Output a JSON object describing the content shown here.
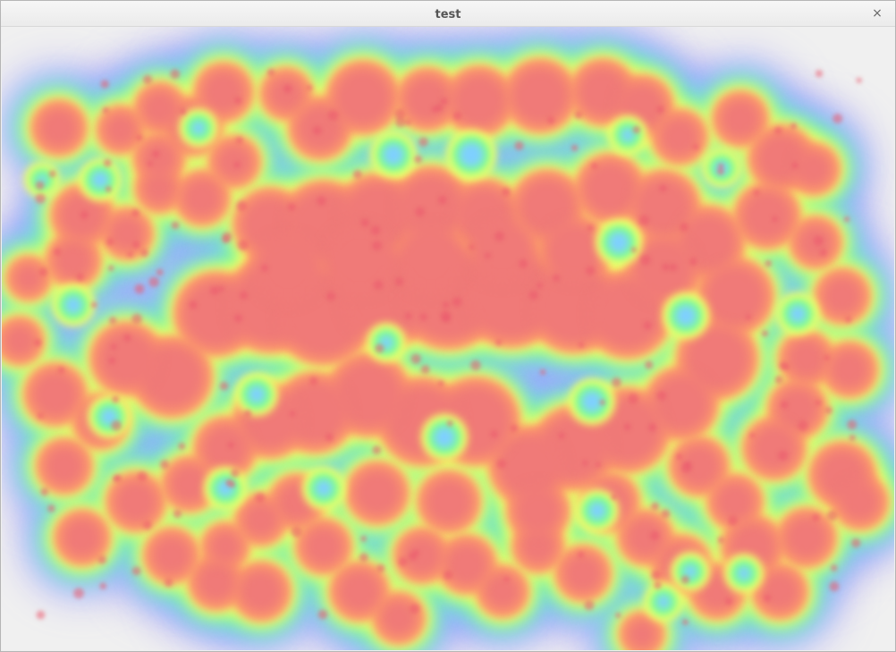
{
  "window": {
    "title": "test",
    "close_glyph": "×"
  },
  "heatmap": {
    "colors": [
      "#8a7cff",
      "#7fd0ff",
      "#7dff90",
      "#ffff66",
      "#ff9a6a",
      "#f07a78"
    ],
    "blobs": [
      [
        64,
        142,
        30
      ],
      [
        133,
        144,
        26
      ],
      [
        214,
        140,
        32
      ],
      [
        177,
        120,
        28
      ],
      [
        248,
        102,
        32
      ],
      [
        318,
        104,
        28
      ],
      [
        356,
        142,
        34
      ],
      [
        404,
        108,
        40
      ],
      [
        476,
        110,
        34
      ],
      [
        534,
        112,
        38
      ],
      [
        602,
        106,
        40
      ],
      [
        672,
        102,
        36
      ],
      [
        716,
        118,
        34
      ],
      [
        758,
        152,
        30
      ],
      [
        826,
        132,
        30
      ],
      [
        872,
        176,
        36
      ],
      [
        908,
        188,
        28
      ],
      [
        856,
        240,
        36
      ],
      [
        910,
        270,
        28
      ],
      [
        940,
        330,
        30
      ],
      [
        900,
        400,
        30
      ],
      [
        948,
        412,
        30
      ],
      [
        890,
        456,
        32
      ],
      [
        864,
        500,
        34
      ],
      [
        940,
        530,
        36
      ],
      [
        960,
        560,
        30
      ],
      [
        900,
        600,
        32
      ],
      [
        840,
        610,
        34
      ],
      [
        800,
        660,
        30
      ],
      [
        870,
        660,
        30
      ],
      [
        760,
        630,
        32
      ],
      [
        720,
        600,
        30
      ],
      [
        716,
        708,
        24
      ],
      [
        650,
        640,
        30
      ],
      [
        600,
        610,
        28
      ],
      [
        560,
        660,
        28
      ],
      [
        520,
        630,
        32
      ],
      [
        470,
        620,
        30
      ],
      [
        444,
        690,
        28
      ],
      [
        400,
        660,
        32
      ],
      [
        360,
        610,
        30
      ],
      [
        290,
        660,
        32
      ],
      [
        240,
        650,
        30
      ],
      [
        190,
        620,
        30
      ],
      [
        150,
        560,
        32
      ],
      [
        90,
        600,
        30
      ],
      [
        70,
        520,
        30
      ],
      [
        110,
        470,
        30
      ],
      [
        60,
        440,
        34
      ],
      [
        20,
        380,
        26
      ],
      [
        30,
        310,
        24
      ],
      [
        80,
        290,
        30
      ],
      [
        90,
        240,
        34
      ],
      [
        140,
        260,
        28
      ],
      [
        176,
        210,
        26
      ],
      [
        176,
        176,
        28
      ],
      [
        224,
        220,
        30
      ],
      [
        260,
        180,
        28
      ],
      [
        300,
        250,
        40
      ],
      [
        360,
        250,
        48
      ],
      [
        420,
        240,
        46
      ],
      [
        480,
        230,
        44
      ],
      [
        540,
        240,
        40
      ],
      [
        610,
        230,
        40
      ],
      [
        680,
        210,
        38
      ],
      [
        740,
        230,
        40
      ],
      [
        790,
        270,
        40
      ],
      [
        820,
        330,
        42
      ],
      [
        800,
        400,
        44
      ],
      [
        760,
        450,
        40
      ],
      [
        700,
        480,
        46
      ],
      [
        640,
        500,
        46
      ],
      [
        590,
        520,
        44
      ],
      [
        530,
        470,
        48
      ],
      [
        470,
        470,
        48
      ],
      [
        410,
        440,
        46
      ],
      [
        350,
        460,
        44
      ],
      [
        300,
        470,
        40
      ],
      [
        250,
        500,
        34
      ],
      [
        210,
        540,
        30
      ],
      [
        190,
        420,
        44
      ],
      [
        140,
        400,
        40
      ],
      [
        240,
        350,
        46
      ],
      [
        300,
        340,
        52
      ],
      [
        360,
        350,
        56
      ],
      [
        430,
        330,
        56
      ],
      [
        500,
        330,
        58
      ],
      [
        570,
        330,
        56
      ],
      [
        640,
        340,
        52
      ],
      [
        700,
        350,
        48
      ],
      [
        740,
        300,
        42
      ],
      [
        640,
        280,
        40
      ],
      [
        560,
        280,
        42
      ],
      [
        480,
        290,
        44
      ],
      [
        400,
        290,
        46
      ],
      [
        320,
        300,
        44
      ],
      [
        680,
        560,
        32
      ],
      [
        600,
        570,
        34
      ],
      [
        500,
        560,
        34
      ],
      [
        420,
        550,
        34
      ],
      [
        330,
        560,
        30
      ],
      [
        290,
        580,
        28
      ],
      [
        250,
        610,
        26
      ],
      [
        780,
        520,
        32
      ],
      [
        820,
        560,
        30
      ]
    ],
    "holes": [
      [
        438,
        172,
        16
      ],
      [
        525,
        172,
        18
      ],
      [
        220,
        142,
        12
      ],
      [
        110,
        200,
        14
      ],
      [
        80,
        340,
        14
      ],
      [
        120,
        465,
        14
      ],
      [
        250,
        545,
        14
      ],
      [
        285,
        440,
        14
      ],
      [
        495,
        488,
        16
      ],
      [
        660,
        448,
        16
      ],
      [
        690,
        270,
        16
      ],
      [
        765,
        352,
        16
      ],
      [
        890,
        350,
        14
      ],
      [
        805,
        187,
        12
      ],
      [
        666,
        570,
        14
      ],
      [
        770,
        638,
        12
      ],
      [
        830,
        640,
        12
      ],
      [
        740,
        672,
        12
      ],
      [
        360,
        545,
        14
      ],
      [
        430,
        382,
        12
      ],
      [
        700,
        150,
        12
      ],
      [
        45,
        200,
        10
      ]
    ]
  }
}
